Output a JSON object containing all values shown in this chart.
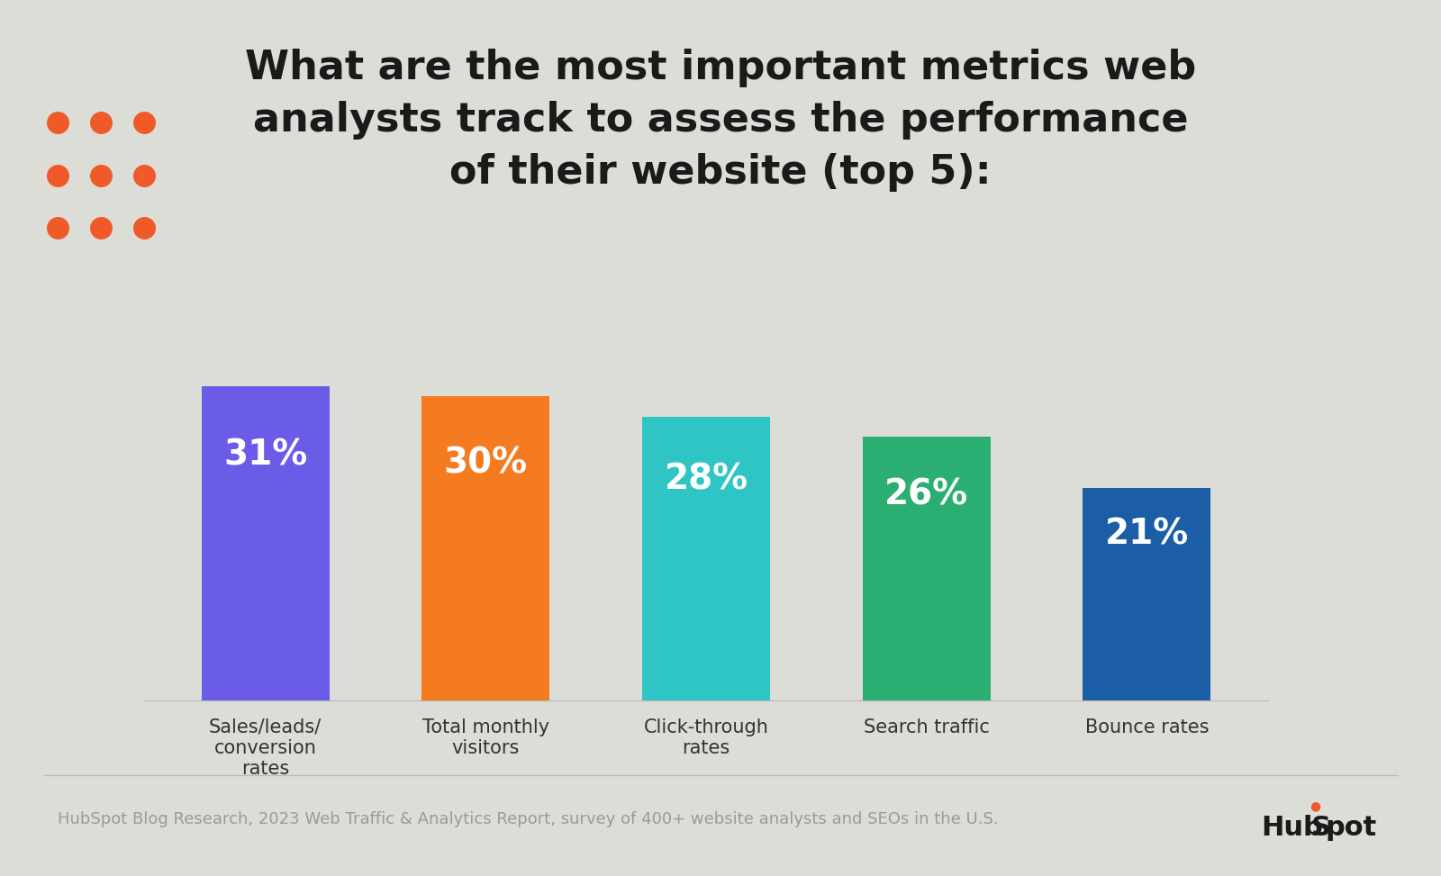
{
  "title": "What are the most important metrics web\nanalysts track to assess the performance\nof their website (top 5):",
  "categories": [
    "Sales/leads/\nconversion\nrates",
    "Total monthly\nvisitors",
    "Click-through\nrates",
    "Search traffic",
    "Bounce rates"
  ],
  "values": [
    31,
    30,
    28,
    26,
    21
  ],
  "bar_colors": [
    "#6B5CE7",
    "#F47B20",
    "#30C5C5",
    "#2BAE72",
    "#1B5EA6"
  ],
  "bar_labels": [
    "31%",
    "30%",
    "28%",
    "26%",
    "21%"
  ],
  "label_color": "#FFFFFF",
  "background_color": "#DDDDD8",
  "footer_text": "HubSpot Blog Research, 2023 Web Traffic & Analytics Report, survey of 400+ website analysts and SEOs in the U.S.",
  "footer_color": "#999999",
  "dot_color": "#F05A28",
  "title_color": "#1A1A1A",
  "arc_color": "#F05A28",
  "bar_label_fontsize": 28,
  "title_fontsize": 32,
  "category_fontsize": 15,
  "footer_fontsize": 13,
  "hubspot_fontsize": 22
}
